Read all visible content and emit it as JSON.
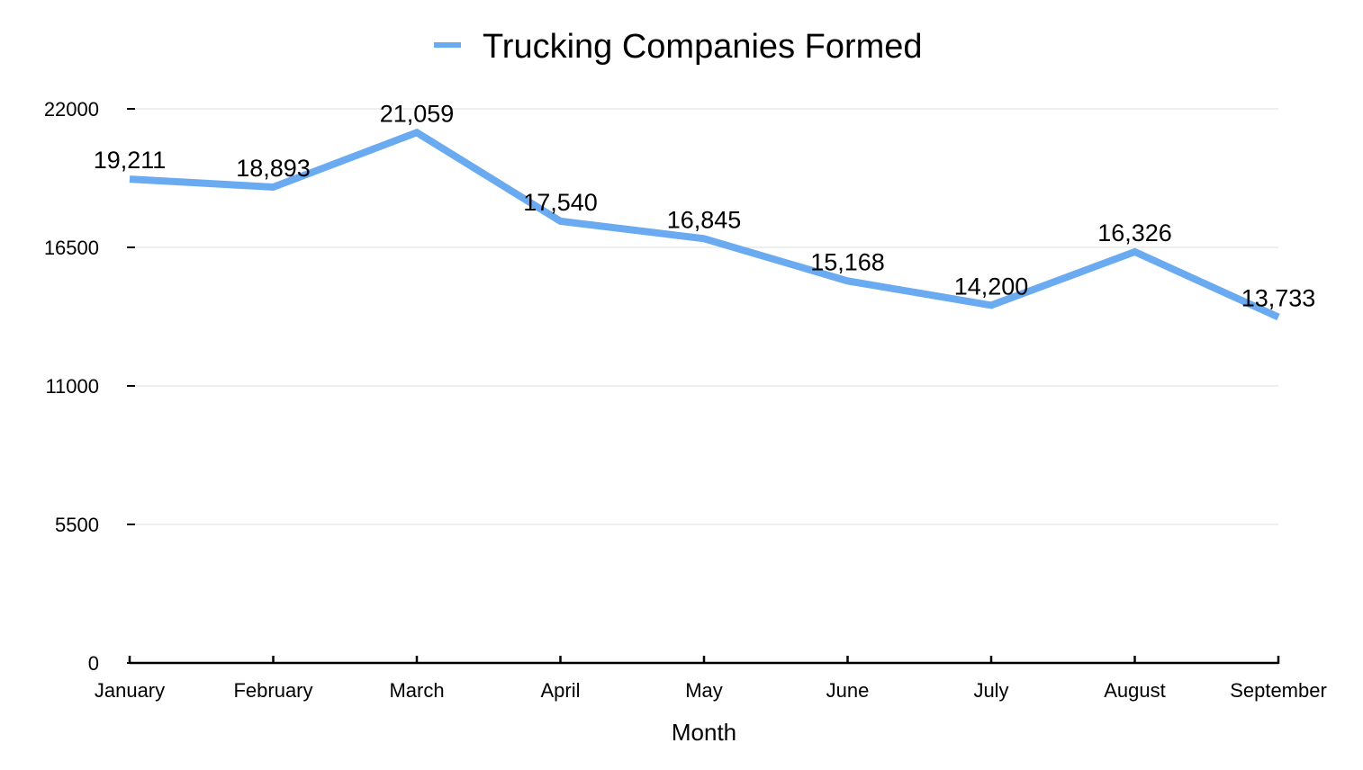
{
  "chart_data": {
    "type": "line",
    "categories": [
      "January",
      "February",
      "March",
      "April",
      "May",
      "June",
      "July",
      "August",
      "September"
    ],
    "series": [
      {
        "name": "Trucking Companies Formed",
        "values": [
          19211,
          18893,
          21059,
          17540,
          16845,
          15168,
          14200,
          16326,
          13733
        ],
        "labels": [
          "19,211",
          "18,893",
          "21,059",
          "17,540",
          "16,845",
          "15,168",
          "14,200",
          "16,326",
          "13,733"
        ],
        "color": "#6aaaf0"
      }
    ],
    "xlabel": "Month",
    "ylabel": "",
    "ylim": [
      0,
      22000
    ],
    "yticks": [
      0,
      5500,
      11000,
      16500,
      22000
    ],
    "ytick_labels": [
      "0",
      "5500",
      "11000",
      "16500",
      "22000"
    ],
    "grid": true,
    "legend_position": "top-center",
    "colors": {
      "gridline": "#dddddd",
      "axis": "#000000"
    }
  }
}
